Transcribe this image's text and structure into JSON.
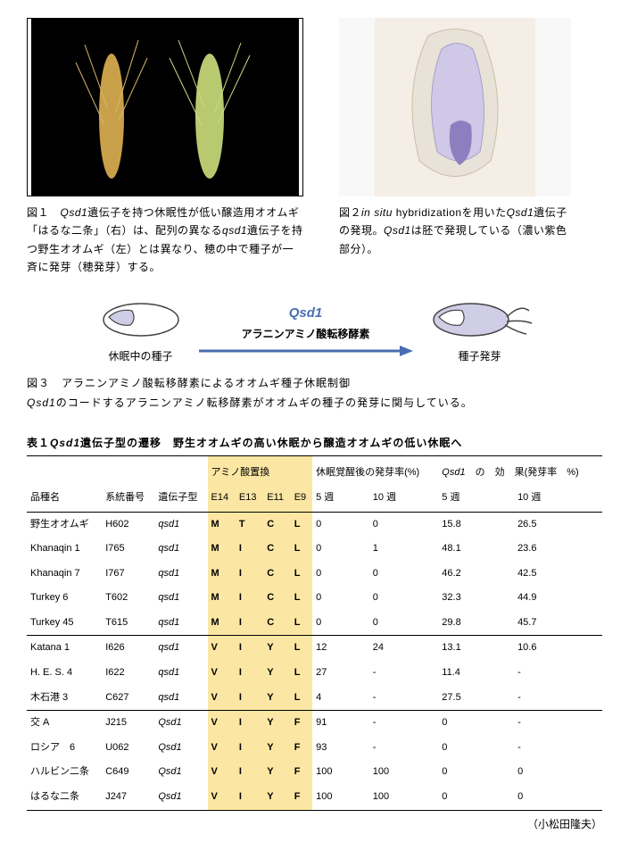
{
  "fig1": {
    "caption_html": "図１　<span class='italic'>Qsd1</span>遺伝子を持つ休眠性が低い醸造用オオムギ「はるな二条」（右）は、配列の異なる<span class='italic'>qsd1</span>遺伝子を持つ野生オオムギ（左）とは異なり、穂の中で種子が一斉に発芽（穂発芽）する。",
    "img_alt": "オオムギ穂の写真"
  },
  "fig2": {
    "caption_html": "図２<span class='italic'>in situ</span> hybridizationを用いた<span class='italic'>Qsd1</span>遺伝子の発現。<span class='italic'>Qsd1</span>は胚で発現している（濃い紫色部分）。",
    "img_alt": "in situ hybridization 切片像"
  },
  "fig3": {
    "qsd1_label": "Qsd1",
    "arrow_label": "アラニンアミノ酸転移酵素",
    "seed_left_label": "休眠中の種子",
    "seed_right_label": "種子発芽",
    "caption_line1": "図３　アラニンアミノ酸転移酵素によるオオムギ種子休眠制御",
    "caption_line2_html": "<span class='italic'>Qsd1</span>のコードするアラニンアミノ転移酵素がオオムギの種子の発芽に関与している。",
    "arrow_color": "#4a6db0",
    "seed_fill": "#d0cde6",
    "seed_stroke": "#444444"
  },
  "table": {
    "title_html": "表１<span class='italic'>Qsd1</span>遺伝子型の遷移　野生オオムギの高い休眠から醸造オオムギの低い休眠へ",
    "header_groups": {
      "name": "品種名",
      "line": "系統番号",
      "genotype": "遺伝子型",
      "amino": "アミノ酸置換",
      "germ": "休眠覚醒後の発芽率(%)",
      "effect_html": "<span class='italic'>Qsd1</span>　の　効　果(発芽率　%)"
    },
    "sub_headers": {
      "amino": [
        "E14",
        "E13",
        "E11",
        "E9"
      ],
      "germ": [
        "5 週",
        "10 週"
      ],
      "effect": [
        "5 週",
        "10 週"
      ]
    },
    "amino_bg": "#fbe7a3",
    "rows": [
      {
        "name": "野生オオムギ",
        "line": "H602",
        "genotype": "qsd1",
        "amino": [
          "M",
          "T",
          "C",
          "L"
        ],
        "germ5": "0",
        "germ10": "0",
        "eff5": "15.8",
        "eff10": "26.5",
        "sep": false,
        "geno_italic": true
      },
      {
        "name": "Khanaqin 1",
        "line": "I765",
        "genotype": "qsd1",
        "amino": [
          "M",
          "I",
          "C",
          "L"
        ],
        "germ5": "0",
        "germ10": "1",
        "eff5": "48.1",
        "eff10": "23.6",
        "sep": false,
        "geno_italic": true
      },
      {
        "name": "Khanaqin 7",
        "line": "I767",
        "genotype": "qsd1",
        "amino": [
          "M",
          "I",
          "C",
          "L"
        ],
        "germ5": "0",
        "germ10": "0",
        "eff5": "46.2",
        "eff10": "42.5",
        "sep": false,
        "geno_italic": true
      },
      {
        "name": "Turkey 6",
        "line": "T602",
        "genotype": "qsd1",
        "amino": [
          "M",
          "I",
          "C",
          "L"
        ],
        "germ5": "0",
        "germ10": "0",
        "eff5": "32.3",
        "eff10": "44.9",
        "sep": false,
        "geno_italic": true
      },
      {
        "name": "Turkey 45",
        "line": "T615",
        "genotype": "qsd1",
        "amino": [
          "M",
          "I",
          "C",
          "L"
        ],
        "germ5": "0",
        "germ10": "0",
        "eff5": "29.8",
        "eff10": "45.7",
        "sep": true,
        "geno_italic": true
      },
      {
        "name": "Katana 1",
        "line": "I626",
        "genotype": "qsd1",
        "amino": [
          "V",
          "I",
          "Y",
          "L"
        ],
        "germ5": "12",
        "germ10": "24",
        "eff5": "13.1",
        "eff10": "10.6",
        "sep": false,
        "geno_italic": true
      },
      {
        "name": "H. E. S. 4",
        "line": "I622",
        "genotype": "qsd1",
        "amino": [
          "V",
          "I",
          "Y",
          "L"
        ],
        "germ5": "27",
        "germ10": "-",
        "eff5": "11.4",
        "eff10": "-",
        "sep": false,
        "geno_italic": true
      },
      {
        "name": "木石港 3",
        "line": "C627",
        "genotype": "qsd1",
        "amino": [
          "V",
          "I",
          "Y",
          "L"
        ],
        "germ5": "4",
        "germ10": "-",
        "eff5": "27.5",
        "eff10": "-",
        "sep": true,
        "geno_italic": true
      },
      {
        "name": "交 A",
        "line": "J215",
        "genotype": "Qsd1",
        "amino": [
          "V",
          "I",
          "Y",
          "F"
        ],
        "germ5": "91",
        "germ10": "-",
        "eff5": "0",
        "eff10": "-",
        "sep": false,
        "geno_italic": true
      },
      {
        "name": "ロシア　6",
        "line": "U062",
        "genotype": "Qsd1",
        "amino": [
          "V",
          "I",
          "Y",
          "F"
        ],
        "germ5": "93",
        "germ10": "-",
        "eff5": "0",
        "eff10": "-",
        "sep": false,
        "geno_italic": true
      },
      {
        "name": "ハルビン二条",
        "line": "C649",
        "genotype": "Qsd1",
        "amino": [
          "V",
          "I",
          "Y",
          "F"
        ],
        "germ5": "100",
        "germ10": "100",
        "eff5": "0",
        "eff10": "0",
        "sep": false,
        "geno_italic": true
      },
      {
        "name": "はるな二条",
        "line": "J247",
        "genotype": "Qsd1",
        "amino": [
          "V",
          "I",
          "Y",
          "F"
        ],
        "germ5": "100",
        "germ10": "100",
        "eff5": "0",
        "eff10": "0",
        "sep": false,
        "geno_italic": true
      }
    ]
  },
  "credit": "（小松田隆夫）"
}
